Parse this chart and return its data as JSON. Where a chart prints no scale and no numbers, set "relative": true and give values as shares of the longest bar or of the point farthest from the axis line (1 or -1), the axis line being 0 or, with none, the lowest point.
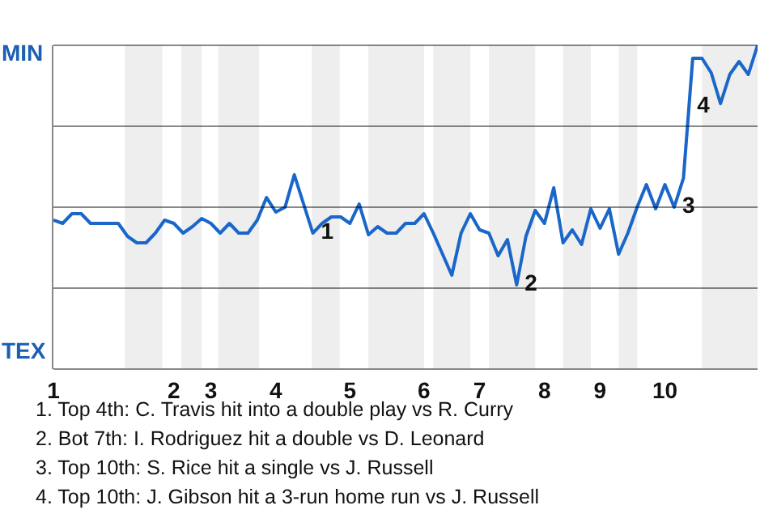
{
  "chart_data": {
    "type": "line",
    "relative": true,
    "categories": [
      "1",
      null,
      null,
      null,
      null,
      null,
      null,
      null,
      null,
      null,
      null,
      null,
      null,
      "2",
      null,
      null,
      null,
      "3",
      null,
      null,
      null,
      null,
      null,
      null,
      "4",
      null,
      null,
      null,
      null,
      null,
      null,
      null,
      "5",
      null,
      null,
      null,
      null,
      null,
      null,
      null,
      "6",
      null,
      null,
      null,
      null,
      null,
      "7",
      null,
      null,
      null,
      null,
      null,
      null,
      "8",
      null,
      null,
      null,
      null,
      null,
      "9",
      null,
      null,
      null,
      null,
      null,
      null,
      "10",
      null,
      null,
      null,
      null,
      null,
      null,
      null,
      null,
      null,
      null
    ],
    "series": [
      {
        "color": "#1a66c9",
        "values": [
          0.46,
          0.45,
          0.48,
          0.48,
          0.45,
          0.45,
          0.45,
          0.45,
          0.41,
          0.39,
          0.39,
          0.42,
          0.46,
          0.45,
          0.42,
          0.44,
          0.465,
          0.45,
          0.42,
          0.45,
          0.42,
          0.42,
          0.46,
          0.53,
          0.485,
          0.5,
          0.6,
          0.51,
          0.42,
          0.45,
          0.47,
          0.47,
          0.45,
          0.51,
          0.415,
          0.44,
          0.42,
          0.42,
          0.45,
          0.45,
          0.48,
          0.42,
          0.355,
          0.29,
          0.42,
          0.48,
          0.43,
          0.42,
          0.35,
          0.4,
          0.26,
          0.41,
          0.49,
          0.45,
          0.56,
          0.39,
          0.43,
          0.385,
          0.495,
          0.435,
          0.495,
          0.355,
          0.42,
          0.5,
          0.57,
          0.495,
          0.57,
          0.5,
          0.59,
          0.96,
          0.96,
          0.915,
          0.82,
          0.91,
          0.95,
          0.91,
          1
        ]
      }
    ],
    "marker": "none",
    "annotations": [
      "MIN",
      "TEX",
      "1",
      "2",
      "3",
      "4",
      "1. Top 4th: C. Travis hit into a double play vs R. Curry",
      "2. Bot 7th: I. Rodriguez hit a double vs D. Leonard",
      "3. Top 10th: S. Rice hit a single vs J. Russell",
      "4. Top 10th: J. Gibson hit a 3-run home run vs J. Russell"
    ]
  }
}
